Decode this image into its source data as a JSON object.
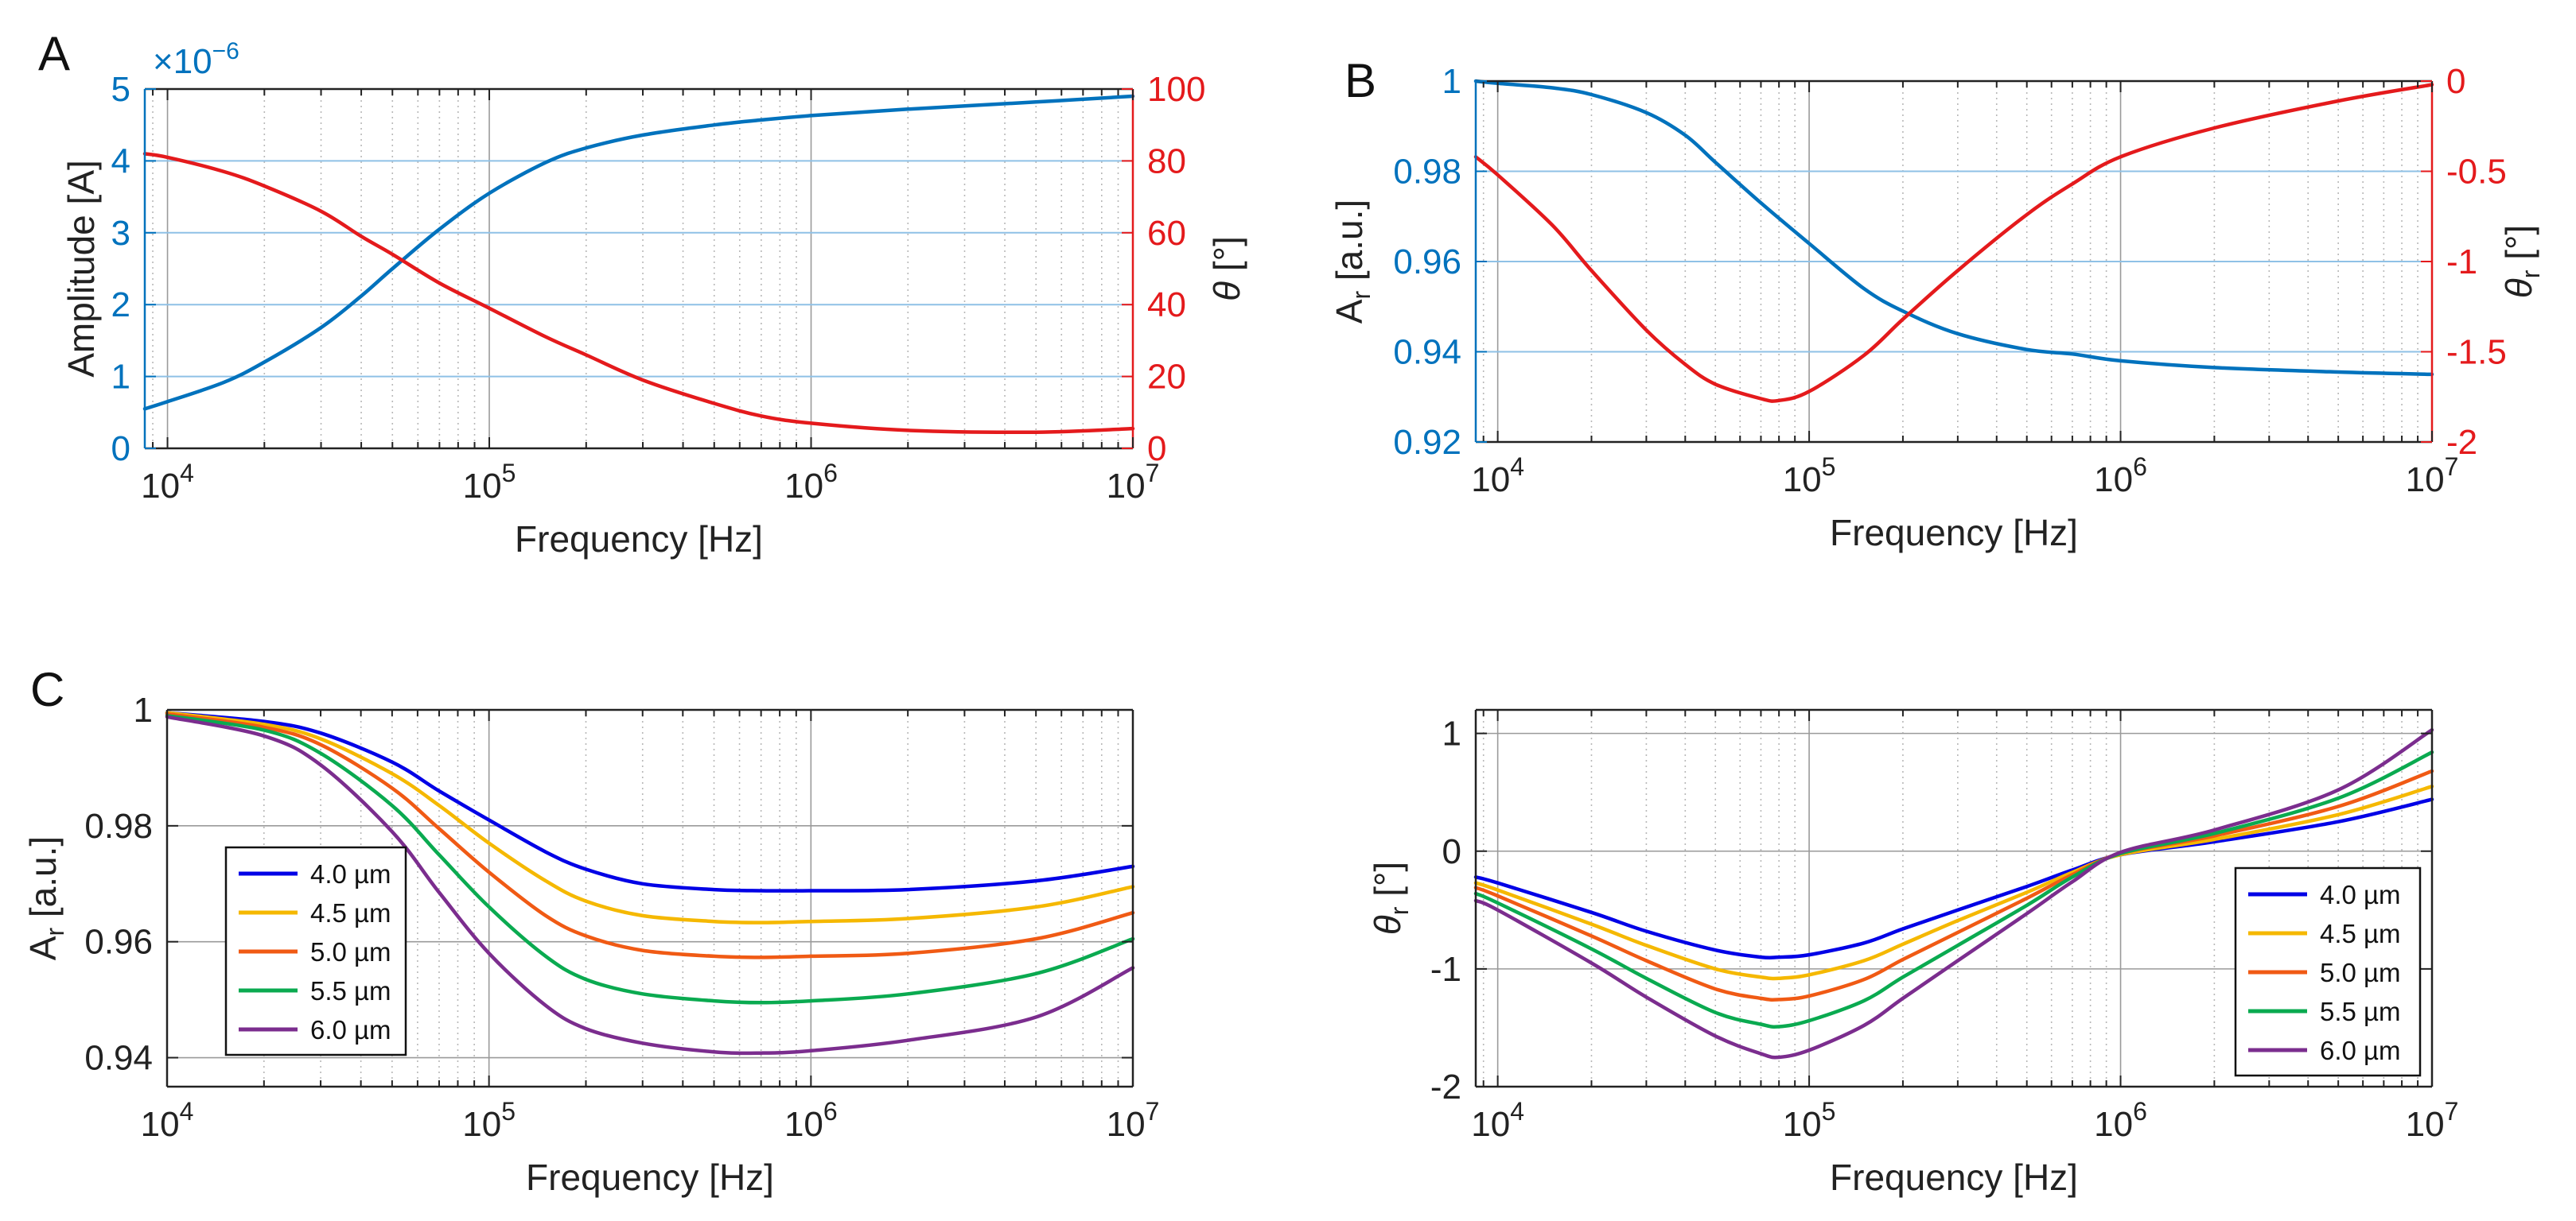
{
  "colors": {
    "blue": "#0072BD",
    "red": "#E41A1C",
    "grid_major": "#9A9A9A",
    "grid_minor": "#B8B8B8",
    "axis": "#222222",
    "ref_line": "#8FC1E6"
  },
  "chart_data": [
    {
      "panel": "A",
      "type": "line",
      "xlabel": "Frequency [Hz]",
      "xscale": "log",
      "xlim": [
        8500,
        10000000
      ],
      "x_ticks": [
        10000,
        100000,
        1000000,
        10000000
      ],
      "x_tick_labels": [
        {
          "base": "10",
          "exp": "4"
        },
        {
          "base": "10",
          "exp": "5"
        },
        {
          "base": "10",
          "exp": "6"
        },
        {
          "base": "10",
          "exp": "7"
        }
      ],
      "left_axis": {
        "label": "Amplitude [A]",
        "ylim": [
          0,
          5
        ],
        "ticks": [
          0,
          1,
          2,
          3,
          4,
          5
        ],
        "tick_labels": [
          "0",
          "1",
          "2",
          "3",
          "4",
          "5"
        ],
        "multiplier": {
          "base": "×10",
          "exp": "−6"
        },
        "color": "#0072BD"
      },
      "right_axis": {
        "label": "θ [°]",
        "ylim": [
          0,
          100
        ],
        "ticks": [
          0,
          20,
          40,
          60,
          80,
          100
        ],
        "tick_labels": [
          "0",
          "20",
          "40",
          "60",
          "80",
          "100"
        ],
        "color": "#E41A1C"
      },
      "grid": "x",
      "ref_lines_left": [
        1,
        2,
        3,
        4
      ],
      "series": [
        {
          "name": "Amplitude",
          "axis": "left",
          "color": "#0072BD",
          "x": [
            8500,
            10000,
            15000,
            20000,
            30000,
            40000,
            50000,
            70000,
            100000,
            150000,
            200000,
            300000,
            500000,
            700000,
            1000000,
            2000000,
            5000000,
            10000000
          ],
          "y": [
            0.55,
            0.65,
            0.92,
            1.2,
            1.68,
            2.12,
            2.5,
            3.05,
            3.55,
            3.98,
            4.18,
            4.36,
            4.5,
            4.57,
            4.63,
            4.72,
            4.82,
            4.9
          ]
        },
        {
          "name": "θ",
          "axis": "right",
          "color": "#E41A1C",
          "x": [
            8500,
            10000,
            15000,
            20000,
            30000,
            40000,
            50000,
            70000,
            100000,
            150000,
            200000,
            300000,
            500000,
            700000,
            1000000,
            2000000,
            5000000,
            10000000
          ],
          "y": [
            82,
            81,
            77,
            73,
            66,
            59,
            54,
            46,
            39,
            31,
            26,
            19,
            12.5,
            9,
            7,
            5,
            4.5,
            5.5
          ]
        }
      ]
    },
    {
      "panel": "B",
      "type": "line",
      "xlabel": "Frequency [Hz]",
      "xscale": "log",
      "xlim": [
        8500,
        10000000
      ],
      "x_ticks": [
        10000,
        100000,
        1000000,
        10000000
      ],
      "x_tick_labels": [
        {
          "base": "10",
          "exp": "4"
        },
        {
          "base": "10",
          "exp": "5"
        },
        {
          "base": "10",
          "exp": "6"
        },
        {
          "base": "10",
          "exp": "7"
        }
      ],
      "left_axis": {
        "label": "A",
        "label_sub": "r",
        "label_tail": " [a.u.]",
        "ylim": [
          0.92,
          1.0
        ],
        "ticks": [
          0.92,
          0.94,
          0.96,
          0.98,
          1
        ],
        "tick_labels": [
          "0.92",
          "0.94",
          "0.96",
          "0.98",
          "1"
        ],
        "color": "#0072BD"
      },
      "right_axis": {
        "label": "θ",
        "label_sub": "r",
        "label_tail": " [°]",
        "ylim": [
          -2,
          0
        ],
        "ticks": [
          -2,
          -1.5,
          -1,
          -0.5,
          0
        ],
        "tick_labels": [
          "-2",
          "-1.5",
          "-1",
          "-0.5",
          "0"
        ],
        "color": "#E41A1C"
      },
      "grid": "x",
      "ref_lines_left": [
        0.94,
        0.96,
        0.98
      ],
      "series": [
        {
          "name": "Ar",
          "axis": "left",
          "color": "#0072BD",
          "x": [
            8500,
            10000,
            15000,
            20000,
            30000,
            40000,
            50000,
            70000,
            100000,
            150000,
            200000,
            300000,
            500000,
            700000,
            1000000,
            2000000,
            5000000,
            10000000
          ],
          "y": [
            1.0,
            0.9995,
            0.9985,
            0.997,
            0.993,
            0.988,
            0.982,
            0.973,
            0.964,
            0.954,
            0.949,
            0.944,
            0.9405,
            0.9395,
            0.938,
            0.9365,
            0.9355,
            0.935
          ]
        },
        {
          "name": "θr",
          "axis": "right",
          "color": "#E41A1C",
          "x": [
            8500,
            10000,
            15000,
            20000,
            30000,
            40000,
            50000,
            70000,
            80000,
            100000,
            150000,
            200000,
            300000,
            500000,
            700000,
            1000000,
            2000000,
            5000000,
            10000000
          ],
          "y": [
            -0.42,
            -0.52,
            -0.8,
            -1.05,
            -1.38,
            -1.57,
            -1.68,
            -1.76,
            -1.77,
            -1.72,
            -1.52,
            -1.32,
            -1.05,
            -0.74,
            -0.57,
            -0.42,
            -0.26,
            -0.11,
            -0.02
          ]
        }
      ]
    },
    {
      "panel": "C-left",
      "type": "line",
      "xlabel": "Frequency [Hz]",
      "xscale": "log",
      "xlim": [
        10000,
        10000000
      ],
      "x_ticks": [
        10000,
        100000,
        1000000,
        10000000
      ],
      "x_tick_labels": [
        {
          "base": "10",
          "exp": "4"
        },
        {
          "base": "10",
          "exp": "5"
        },
        {
          "base": "10",
          "exp": "6"
        },
        {
          "base": "10",
          "exp": "7"
        }
      ],
      "left_axis": {
        "label": "A",
        "label_sub": "r",
        "label_tail": " [a.u.]",
        "ylim": [
          0.935,
          1.0
        ],
        "ticks": [
          0.94,
          0.96,
          0.98,
          1
        ],
        "tick_labels": [
          "0.94",
          "0.96",
          "0.98",
          "1"
        ],
        "color": "#111111"
      },
      "grid": "both",
      "legend": "middle-left",
      "series": [
        {
          "name": "4.0 µm",
          "color": "#0000E6",
          "x": [
            10000,
            20000,
            30000,
            50000,
            70000,
            100000,
            150000,
            200000,
            300000,
            500000,
            700000,
            1000000,
            2000000,
            5000000,
            10000000
          ],
          "y": [
            0.9995,
            0.998,
            0.996,
            0.991,
            0.986,
            0.981,
            0.9755,
            0.9725,
            0.97,
            0.969,
            0.9688,
            0.9688,
            0.969,
            0.9705,
            0.973
          ]
        },
        {
          "name": "4.5 µm",
          "color": "#F5B800",
          "x": [
            10000,
            20000,
            30000,
            50000,
            70000,
            100000,
            150000,
            200000,
            300000,
            500000,
            700000,
            1000000,
            2000000,
            5000000,
            10000000
          ],
          "y": [
            0.9995,
            0.9975,
            0.995,
            0.989,
            0.9835,
            0.977,
            0.9705,
            0.967,
            0.9645,
            0.9635,
            0.9633,
            0.9635,
            0.964,
            0.966,
            0.9695
          ]
        },
        {
          "name": "5.0 µm",
          "color": "#F05A14",
          "x": [
            10000,
            20000,
            30000,
            50000,
            70000,
            100000,
            150000,
            200000,
            300000,
            500000,
            700000,
            1000000,
            2000000,
            5000000,
            10000000
          ],
          "y": [
            0.9993,
            0.997,
            0.994,
            0.9865,
            0.9795,
            0.972,
            0.9645,
            0.961,
            0.9585,
            0.9575,
            0.9573,
            0.9575,
            0.958,
            0.9605,
            0.965
          ]
        },
        {
          "name": "5.5 µm",
          "color": "#0AAA50",
          "x": [
            10000,
            20000,
            30000,
            50000,
            70000,
            100000,
            150000,
            200000,
            300000,
            500000,
            700000,
            1000000,
            2000000,
            5000000,
            10000000
          ],
          "y": [
            0.999,
            0.9965,
            0.9925,
            0.9835,
            0.975,
            0.966,
            0.9575,
            0.9535,
            0.951,
            0.9498,
            0.9495,
            0.9498,
            0.951,
            0.9545,
            0.9605
          ]
        },
        {
          "name": "6.0 µm",
          "color": "#7B2D8E",
          "x": [
            10000,
            20000,
            30000,
            50000,
            70000,
            100000,
            150000,
            200000,
            300000,
            500000,
            700000,
            1000000,
            2000000,
            5000000,
            10000000
          ],
          "y": [
            0.9988,
            0.9955,
            0.9905,
            0.979,
            0.9685,
            0.958,
            0.949,
            0.945,
            0.9425,
            0.941,
            0.9408,
            0.9412,
            0.943,
            0.947,
            0.9555
          ]
        }
      ]
    },
    {
      "panel": "C-right",
      "type": "line",
      "xlabel": "Frequency [Hz]",
      "xscale": "log",
      "xlim": [
        8500,
        10000000
      ],
      "x_ticks": [
        10000,
        100000,
        1000000,
        10000000
      ],
      "x_tick_labels": [
        {
          "base": "10",
          "exp": "4"
        },
        {
          "base": "10",
          "exp": "5"
        },
        {
          "base": "10",
          "exp": "6"
        },
        {
          "base": "10",
          "exp": "7"
        }
      ],
      "left_axis": {
        "label": "θ",
        "label_sub": "r",
        "label_tail": " [°]",
        "ylim": [
          -2,
          1.2
        ],
        "ticks": [
          -2,
          -1,
          0,
          1
        ],
        "tick_labels": [
          "-2",
          "-1",
          "0",
          "1"
        ],
        "color": "#111111"
      },
      "grid": "both",
      "legend": "bottom-right",
      "series": [
        {
          "name": "4.0 µm",
          "color": "#0000E6",
          "x": [
            8500,
            10000,
            20000,
            30000,
            50000,
            70000,
            80000,
            100000,
            150000,
            200000,
            300000,
            500000,
            700000,
            1000000,
            2000000,
            5000000,
            10000000
          ],
          "y": [
            -0.22,
            -0.27,
            -0.52,
            -0.68,
            -0.84,
            -0.9,
            -0.9,
            -0.88,
            -0.78,
            -0.66,
            -0.5,
            -0.3,
            -0.16,
            -0.03,
            0.08,
            0.25,
            0.44
          ]
        },
        {
          "name": "4.5 µm",
          "color": "#F5B800",
          "x": [
            8500,
            10000,
            20000,
            30000,
            50000,
            70000,
            80000,
            100000,
            150000,
            200000,
            300000,
            500000,
            700000,
            1000000,
            2000000,
            5000000,
            10000000
          ],
          "y": [
            -0.27,
            -0.33,
            -0.62,
            -0.8,
            -1.0,
            -1.07,
            -1.08,
            -1.05,
            -0.93,
            -0.79,
            -0.59,
            -0.35,
            -0.18,
            -0.03,
            0.1,
            0.31,
            0.55
          ]
        },
        {
          "name": "5.0 µm",
          "color": "#F05A14",
          "x": [
            8500,
            10000,
            20000,
            30000,
            50000,
            70000,
            80000,
            100000,
            150000,
            200000,
            300000,
            500000,
            700000,
            1000000,
            2000000,
            5000000,
            10000000
          ],
          "y": [
            -0.31,
            -0.38,
            -0.72,
            -0.93,
            -1.17,
            -1.25,
            -1.26,
            -1.23,
            -1.09,
            -0.92,
            -0.69,
            -0.4,
            -0.2,
            -0.02,
            0.13,
            0.38,
            0.68
          ]
        },
        {
          "name": "5.5 µm",
          "color": "#0AAA50",
          "x": [
            8500,
            10000,
            20000,
            30000,
            50000,
            70000,
            80000,
            100000,
            150000,
            200000,
            300000,
            500000,
            700000,
            1000000,
            2000000,
            5000000,
            10000000
          ],
          "y": [
            -0.36,
            -0.44,
            -0.83,
            -1.08,
            -1.37,
            -1.47,
            -1.49,
            -1.44,
            -1.27,
            -1.07,
            -0.8,
            -0.46,
            -0.22,
            -0.02,
            0.15,
            0.45,
            0.84
          ]
        },
        {
          "name": "6.0 µm",
          "color": "#7B2D8E",
          "x": [
            8500,
            10000,
            20000,
            30000,
            50000,
            70000,
            80000,
            100000,
            150000,
            200000,
            300000,
            500000,
            700000,
            1000000,
            2000000,
            5000000,
            10000000
          ],
          "y": [
            -0.42,
            -0.5,
            -0.95,
            -1.24,
            -1.57,
            -1.72,
            -1.75,
            -1.69,
            -1.48,
            -1.25,
            -0.93,
            -0.53,
            -0.26,
            -0.01,
            0.18,
            0.52,
            1.03
          ]
        }
      ]
    }
  ]
}
